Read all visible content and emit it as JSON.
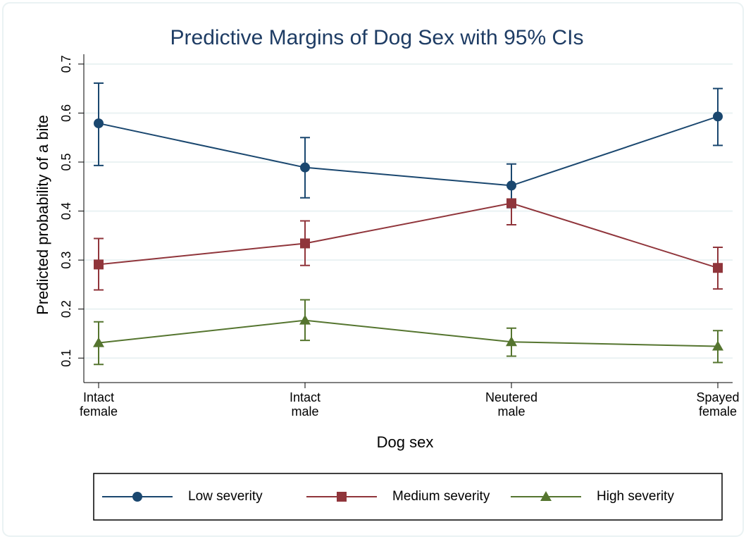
{
  "chart_data": {
    "type": "line",
    "title": "Predictive Margins of Dog Sex with 95% CIs",
    "x_label": "Dog sex",
    "y_label": "Predicted probability of a bite",
    "categories": [
      [
        "Intact",
        "female"
      ],
      [
        "Intact",
        "male"
      ],
      [
        "Neutered",
        "male"
      ],
      [
        "Spayed",
        "female"
      ]
    ],
    "series": [
      {
        "name": "Low severity",
        "color": "#1a476f",
        "marker": "circle",
        "values": [
          0.579,
          0.489,
          0.452,
          0.593
        ],
        "lower": [
          0.493,
          0.427,
          0.407,
          0.534
        ],
        "upper": [
          0.661,
          0.55,
          0.496,
          0.65
        ]
      },
      {
        "name": "Medium severity",
        "color": "#90353b",
        "marker": "square",
        "values": [
          0.291,
          0.334,
          0.416,
          0.284
        ],
        "lower": [
          0.239,
          0.289,
          0.372,
          0.241
        ],
        "upper": [
          0.344,
          0.38,
          0.42,
          0.326
        ]
      },
      {
        "name": "High severity",
        "color": "#55752f",
        "marker": "triangle",
        "values": [
          0.131,
          0.177,
          0.133,
          0.124
        ],
        "lower": [
          0.087,
          0.136,
          0.104,
          0.091
        ],
        "upper": [
          0.174,
          0.219,
          0.161,
          0.156
        ]
      }
    ],
    "ylim": [
      0.05,
      0.72
    ],
    "yticks": [
      0.1,
      0.2,
      0.3,
      0.4,
      0.5,
      0.6,
      0.7
    ],
    "grid": true,
    "legend": "bottom"
  }
}
